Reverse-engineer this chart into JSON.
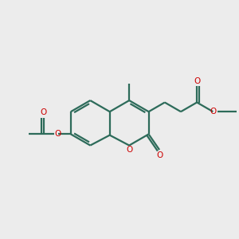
{
  "bg_color": "#ececec",
  "bond_color": "#2d6b5a",
  "atom_color_O": "#cc0000",
  "line_width": 1.6,
  "figsize": [
    3.0,
    3.0
  ],
  "dpi": 100,
  "xlim": [
    0,
    12
  ],
  "ylim": [
    0,
    12
  ]
}
